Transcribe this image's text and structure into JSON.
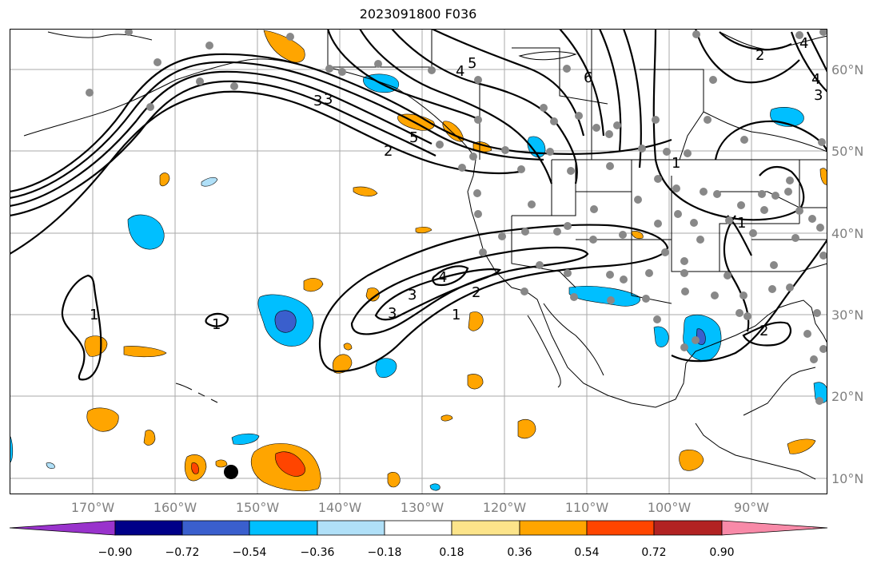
{
  "title": "2023091800 F036",
  "lon_ticks": [
    "170°W",
    "160°W",
    "150°W",
    "140°W",
    "130°W",
    "120°W",
    "110°W",
    "100°W",
    "90°W"
  ],
  "lat_ticks": [
    "60°N",
    "50°N",
    "40°N",
    "30°N",
    "20°N",
    "10°N"
  ],
  "colorbar": {
    "tick_labels": [
      "−0.90",
      "−0.72",
      "−0.54",
      "−0.36",
      "−0.18",
      "0.18",
      "0.36",
      "0.54",
      "0.72",
      "0.90"
    ],
    "colors": [
      "#9933cc",
      "#000088",
      "#3a5fcd",
      "#00bfff",
      "#b0e0f8",
      "#ffffff",
      "#fce48a",
      "#ffa500",
      "#ff4500",
      "#b22222",
      "#f88aa8"
    ]
  },
  "contour_labels": [
    "1",
    "2",
    "3",
    "4",
    "5",
    "6"
  ],
  "colors": {
    "contour": "#000000",
    "coast": "#000000",
    "grid": "#aaaaaa",
    "dots": "#888888",
    "tick_text": "#808080"
  }
}
